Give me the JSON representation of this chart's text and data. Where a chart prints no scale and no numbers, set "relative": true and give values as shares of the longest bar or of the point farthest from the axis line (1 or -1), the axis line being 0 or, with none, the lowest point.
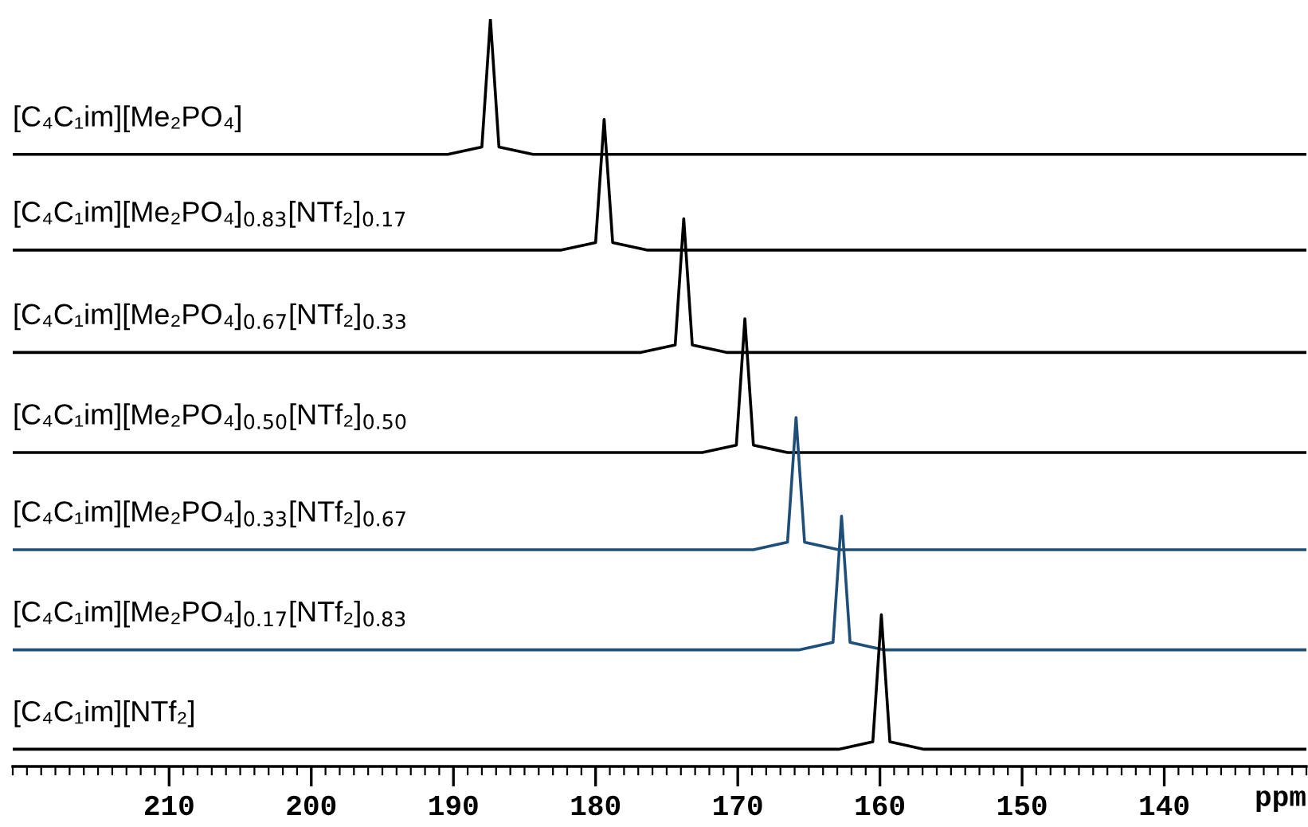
{
  "chart_data": {
    "type": "line",
    "relative": true,
    "xlim": [
      221,
      130
    ],
    "xticks": [
      210,
      200,
      190,
      180,
      170,
      160,
      150,
      140
    ],
    "xlabel": "ppm",
    "x": [
      221,
      190.4,
      188.0,
      187.4,
      186.8,
      184.4,
      130
    ],
    "series": [
      {
        "name": "[C₄C₁im][Me₂PO₄]",
        "color": "#000000",
        "values": [
          0.819,
          0.819,
          0.829,
          1.0,
          0.829,
          0.819,
          0.819
        ]
      },
      {
        "name": "[C₄C₁im][Me₂PO₄]$_{0.83}$[NTf₂]$_{0.17}$",
        "color": "#000000",
        "x": [
          221,
          182.4,
          180.0,
          179.4,
          178.8,
          176.4,
          130
        ],
        "values": [
          0.691,
          0.691,
          0.701,
          0.866,
          0.701,
          0.691,
          0.691
        ]
      },
      {
        "name": "[C₄C₁im][Me₂PO₄]$_{0.67}$[NTf₂]$_{0.33}$",
        "color": "#000000",
        "x": [
          221,
          176.8,
          174.4,
          173.8,
          173.2,
          170.8,
          130
        ],
        "values": [
          0.554,
          0.554,
          0.564,
          0.733,
          0.564,
          0.554,
          0.554
        ]
      },
      {
        "name": "[C₄C₁im][Me₂PO₄]$_{0.50}$[NTf₂]$_{0.50}$",
        "color": "#000000",
        "x": [
          221,
          172.5,
          170.1,
          169.5,
          168.9,
          166.5,
          130
        ],
        "values": [
          0.42,
          0.42,
          0.43,
          0.599,
          0.43,
          0.42,
          0.42
        ]
      },
      {
        "name": "[C₄C₁im][Me₂PO₄]$_{0.33}$[NTf₂]$_{0.67}$",
        "color": "#1f4e79",
        "x": [
          221,
          168.9,
          166.5,
          165.9,
          165.3,
          162.9,
          130
        ],
        "values": [
          0.29,
          0.29,
          0.3,
          0.467,
          0.3,
          0.29,
          0.29
        ]
      },
      {
        "name": "[C₄C₁im][Me₂PO₄]$_{0.17}$[NTf₂]$_{0.83}$",
        "color": "#1f4e79",
        "x": [
          221,
          165.7,
          163.3,
          162.7,
          162.1,
          159.7,
          130
        ],
        "values": [
          0.156,
          0.156,
          0.166,
          0.335,
          0.166,
          0.156,
          0.156
        ]
      },
      {
        "name": "[C₄C₁im][NTf₂]",
        "color": "#000000",
        "x": [
          221,
          162.9,
          160.5,
          159.9,
          159.3,
          156.9,
          130
        ],
        "values": [
          0.023,
          0.023,
          0.033,
          0.203,
          0.033,
          0.023,
          0.023
        ]
      }
    ]
  }
}
